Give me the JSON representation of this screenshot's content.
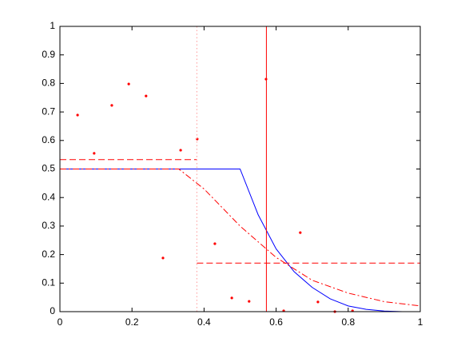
{
  "chart_data": {
    "type": "line",
    "xlim": [
      0,
      1
    ],
    "ylim": [
      0,
      1
    ],
    "xticks": [
      0,
      0.2,
      0.4,
      0.6,
      0.8,
      1
    ],
    "yticks": [
      0,
      0.1,
      0.2,
      0.3,
      0.4,
      0.5,
      0.6,
      0.7,
      0.8,
      0.9,
      1
    ],
    "grid": false,
    "series": [
      {
        "color": "#ff0000",
        "style": "dots",
        "x": [
          0.049,
          0.095,
          0.144,
          0.191,
          0.239,
          0.286,
          0.335,
          0.381,
          0.43,
          0.477,
          0.525,
          0.572,
          0.621,
          0.667,
          0.716,
          0.763,
          0.812
        ],
        "values": [
          0.689,
          0.555,
          0.723,
          0.798,
          0.756,
          0.188,
          0.566,
          0.605,
          0.238,
          0.048,
          0.036,
          0.815,
          0.003,
          0.277,
          0.034,
          0,
          0.003
        ]
      },
      {
        "color": "#0000ff",
        "style": "solid",
        "x": [
          0,
          0.5,
          0.55,
          0.6,
          0.65,
          0.7,
          0.75,
          0.8,
          0.85,
          0.9,
          0.95,
          1
        ],
        "values": [
          0.5,
          0.5,
          0.34,
          0.22,
          0.14,
          0.085,
          0.045,
          0.02,
          0.008,
          0.002,
          0,
          0
        ]
      },
      {
        "color": "#ff0000",
        "style": "dashdot",
        "x": [
          0,
          0.33,
          0.4,
          0.5,
          0.6,
          0.7,
          0.8,
          0.9,
          1
        ],
        "values": [
          0.5,
          0.5,
          0.43,
          0.3,
          0.19,
          0.11,
          0.065,
          0.035,
          0.02
        ]
      },
      {
        "color": "#ff0000",
        "style": "dashed",
        "x": [
          0,
          0.38
        ],
        "values": [
          0.533,
          0.533
        ]
      },
      {
        "color": "#ff0000",
        "style": "dashed",
        "x": [
          0.38,
          1
        ],
        "values": [
          0.17,
          0.17
        ]
      },
      {
        "color": "#ff0000",
        "style": "solid",
        "x": [
          0.573,
          0.573
        ],
        "values": [
          0,
          1
        ]
      },
      {
        "color": "#ff9999",
        "style": "dotted",
        "x": [
          0.38,
          0.38
        ],
        "values": [
          0,
          1
        ]
      }
    ]
  }
}
